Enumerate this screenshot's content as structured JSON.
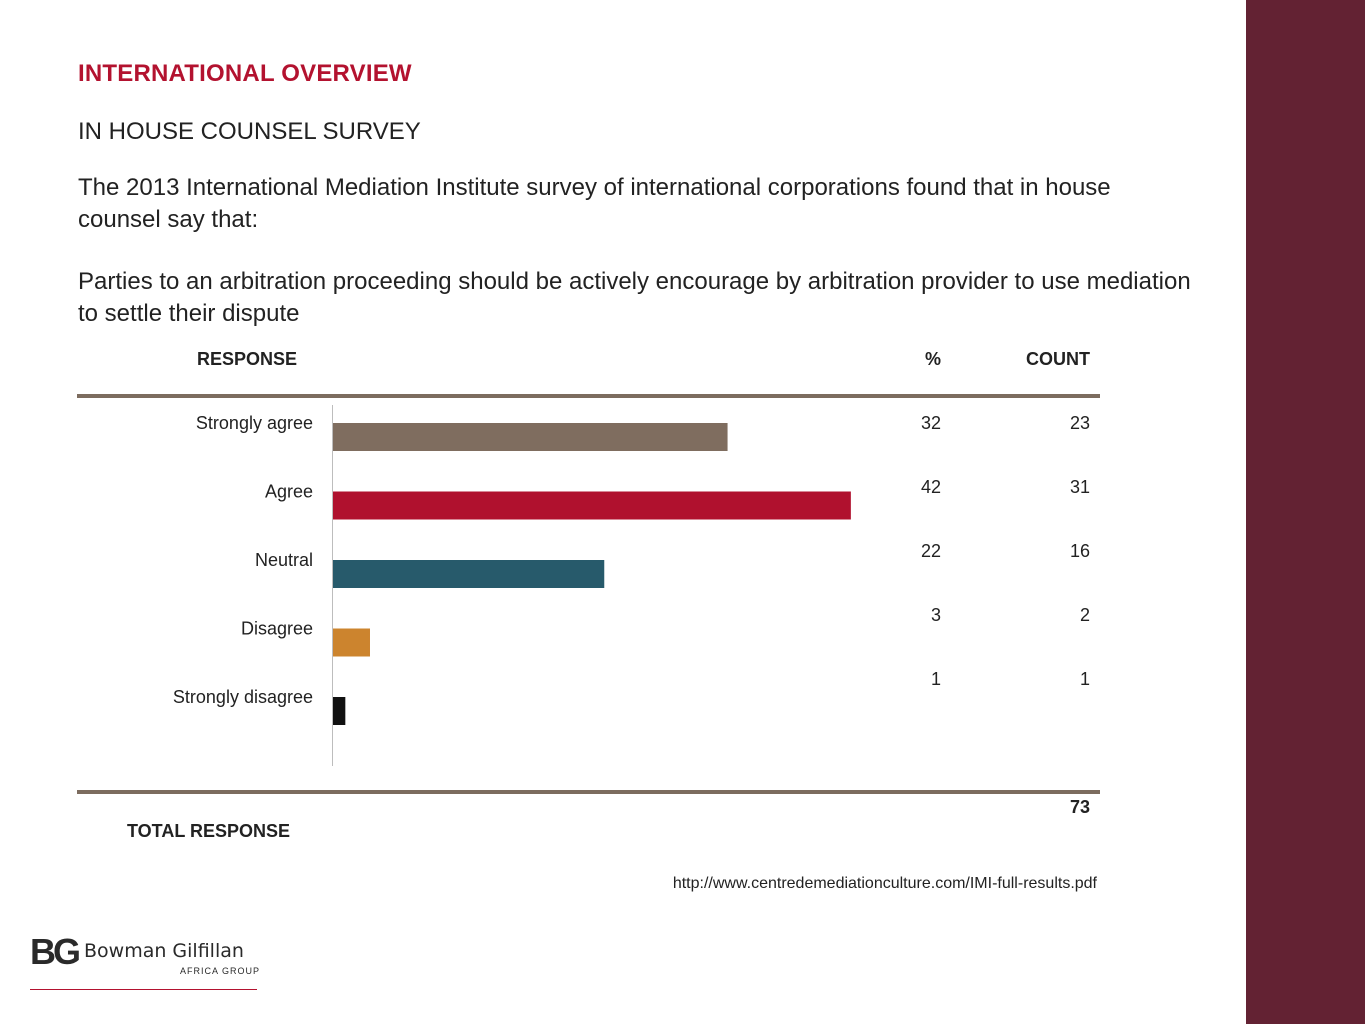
{
  "slide": {
    "heading": "INTERNATIONAL OVERVIEW",
    "subheading": "IN HOUSE COUNSEL SURVEY",
    "intro": "The 2013 International Mediation Institute survey of international corporations found that in house counsel say that:",
    "question": "Parties to an arbitration proceeding should be actively encourage by arbitration provider to use mediation to settle their dispute",
    "source": "http://www.centredemediationculture.com/IMI-full-results.pdf",
    "sidebar_color": "#632233"
  },
  "table": {
    "response_header": "RESPONSE",
    "percent_header": "%",
    "count_header": "COUNT",
    "total_label": "TOTAL RESPONSE",
    "total_value": "73"
  },
  "logo": {
    "mark": "BG",
    "name": "Bowman Gilfillan",
    "subtitle": "AFRICA GROUP"
  },
  "chart_data": {
    "type": "bar",
    "orientation": "horizontal",
    "categories": [
      "Strongly agree",
      "Agree",
      "Neutral",
      "Disagree",
      "Strongly disagree"
    ],
    "values": [
      32,
      42,
      22,
      3,
      1
    ],
    "counts": [
      23,
      31,
      16,
      2,
      1
    ],
    "colors": [
      "#7f6d5f",
      "#b0112e",
      "#275a6b",
      "#cc842e",
      "#111111"
    ],
    "xlim": [
      0,
      100
    ]
  }
}
